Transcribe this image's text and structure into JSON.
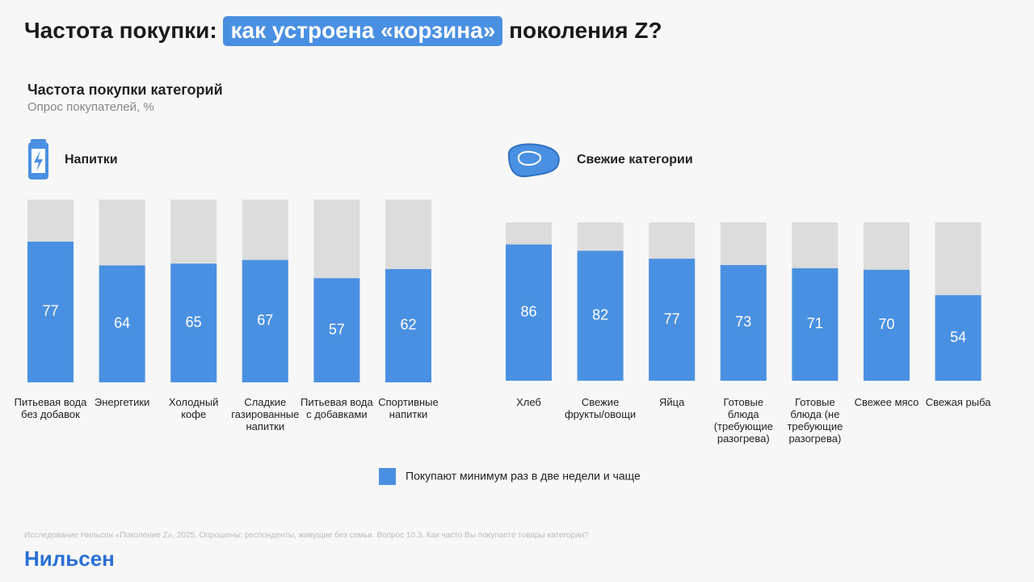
{
  "title": {
    "before": "Частота покупки:",
    "highlight": "как устроена «корзина»",
    "after": "поколения Z?"
  },
  "subtitle": "Частота покупки категорий",
  "note": "Опрос покупателей, %",
  "chart_data": [
    {
      "type": "bar",
      "title": "Напитки",
      "categories": [
        "Питьевая вода без добавок",
        "Энергетики",
        "Холодный кофе",
        "Сладкие газированные напитки",
        "Питьевая вода с добавками",
        "Спортивные напитки"
      ],
      "series": [
        {
          "name": "Покупают минимум раз в две недели и чаще",
          "color": "#4a90e2",
          "values": [
            77,
            64,
            65,
            67,
            57,
            62
          ]
        }
      ],
      "ylim": [
        0,
        100
      ]
    },
    {
      "type": "bar",
      "title": "Свежие категории",
      "categories": [
        "Хлеб",
        "Свежие фрукты/овощи",
        "Яйца",
        "Готовые блюда (требующие разогрева)",
        "Готовые блюда (не требующие разогрева)",
        "Свежее мясо",
        "Свежая рыба"
      ],
      "series": [
        {
          "color": "#4a90e2",
          "values": [
            86,
            82,
            77,
            73,
            71,
            70,
            54
          ]
        }
      ],
      "ylim": [
        0,
        100
      ]
    }
  ],
  "footnote": "Исследование Нильсен «Поколение Z», 2025. Опрошены: респонденты, живущие без семьи. Вопрос 10.3. Как часто Вы покупаете товары категории?",
  "logo": "Нильсен"
}
